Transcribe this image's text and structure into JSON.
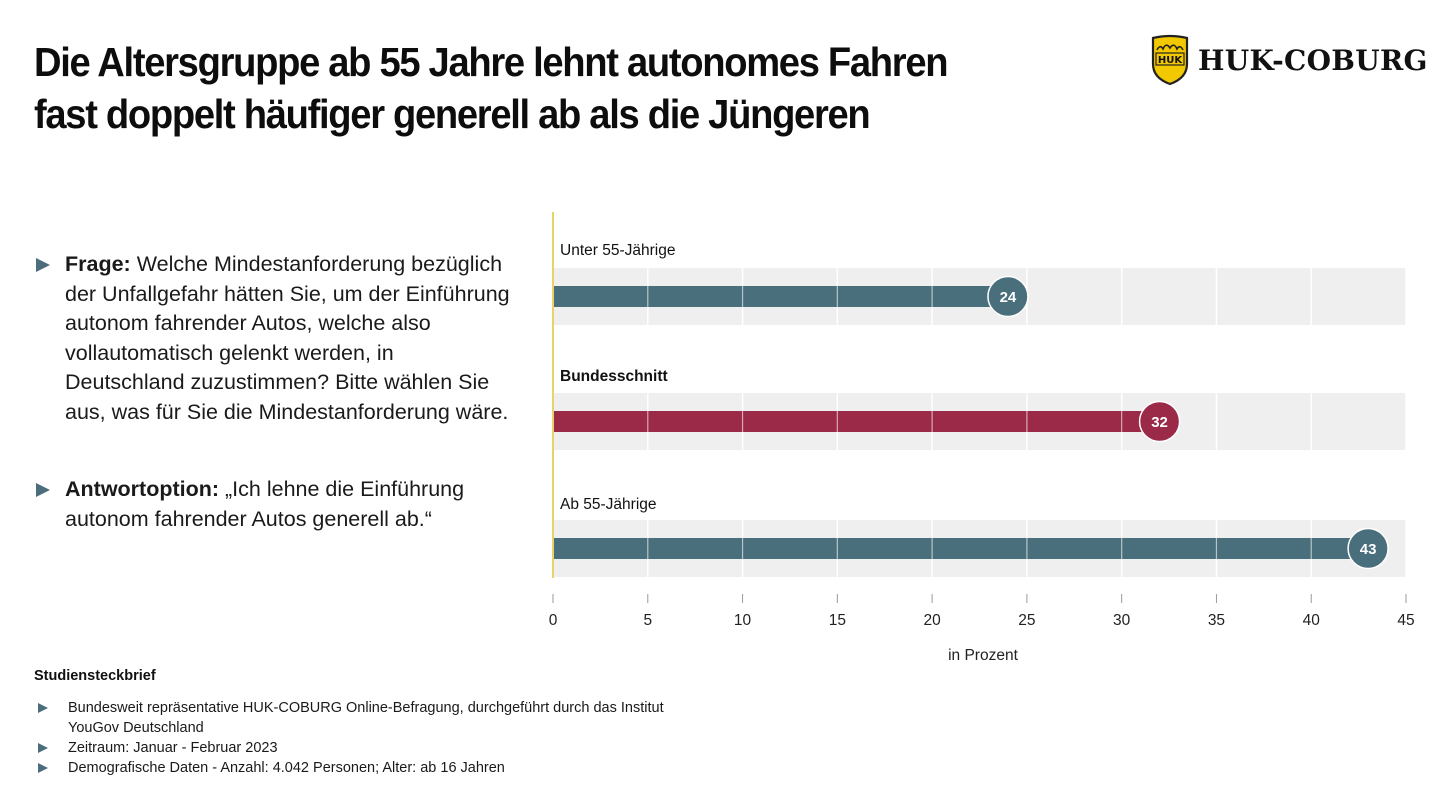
{
  "title_lines": [
    "Die Altersgruppe ab 55 Jahre lehnt autonomes Fahren",
    "fast doppelt häufiger generell ab als die Jüngeren"
  ],
  "logo": {
    "emblem_text": "HUK",
    "wordmark": "HUK-COBURG",
    "emblem_color": "#f2c800"
  },
  "question": {
    "label": "Frage:",
    "text": "Welche Mindestanforderung bezüglich der Unfallgefahr hätten Sie, um der Einführung autonom fahrender Autos, welche also vollautomatisch gelenkt werden, in Deutschland zuzustimmen? Bitte wählen Sie aus, was für Sie die Mindestanforderung wäre."
  },
  "answer": {
    "label": "Antwortoption:",
    "text": "„Ich lehne die Einführung autonom fahrender Autos generell ab.“"
  },
  "chart_data": {
    "type": "bar",
    "orientation": "horizontal",
    "categories": [
      "Unter 55-Jährige",
      "Bundesschnitt",
      "Ab 55-Jährige"
    ],
    "values": [
      24,
      32,
      43
    ],
    "category_bold": [
      false,
      true,
      false
    ],
    "colors": [
      "#4a6f7c",
      "#9b2948",
      "#4a6f7c"
    ],
    "xlabel": "in Prozent",
    "ylabel": "",
    "xlim": [
      0,
      45
    ],
    "xticks": [
      0,
      5,
      10,
      15,
      20,
      25,
      30,
      35,
      40,
      45
    ],
    "grid": true,
    "baseline_color": "#e8d36a",
    "track_color": "#efefef",
    "title": ""
  },
  "footer": {
    "heading": "Studiensteckbrief",
    "items": [
      "Bundesweit repräsentative HUK-COBURG Online-Befragung, durchgeführt durch das Institut YouGov Deutschland",
      "Zeitraum: Januar - Februar 2023",
      "Demografische Daten - Anzahl: 4.042 Personen; Alter: ab 16 Jahren"
    ]
  }
}
